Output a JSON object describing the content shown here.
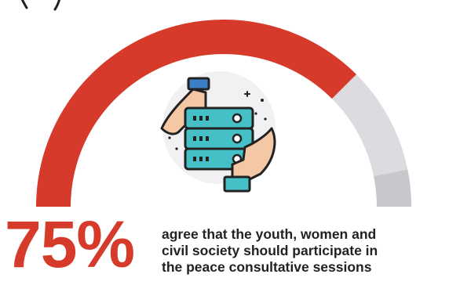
{
  "chart_data": {
    "type": "gauge",
    "value": 75,
    "max": 100,
    "value_label": "75%",
    "description_lines": [
      "agree that the youth, women and",
      "civil society should participate in",
      "the peace  consultative sessions"
    ]
  },
  "colors": {
    "filled": "#d63a2a",
    "remaining": "#dcdbe0",
    "remaining_dark": "#c9c7cc",
    "text": "#222222"
  },
  "icon": "hands-holding-server-icon"
}
